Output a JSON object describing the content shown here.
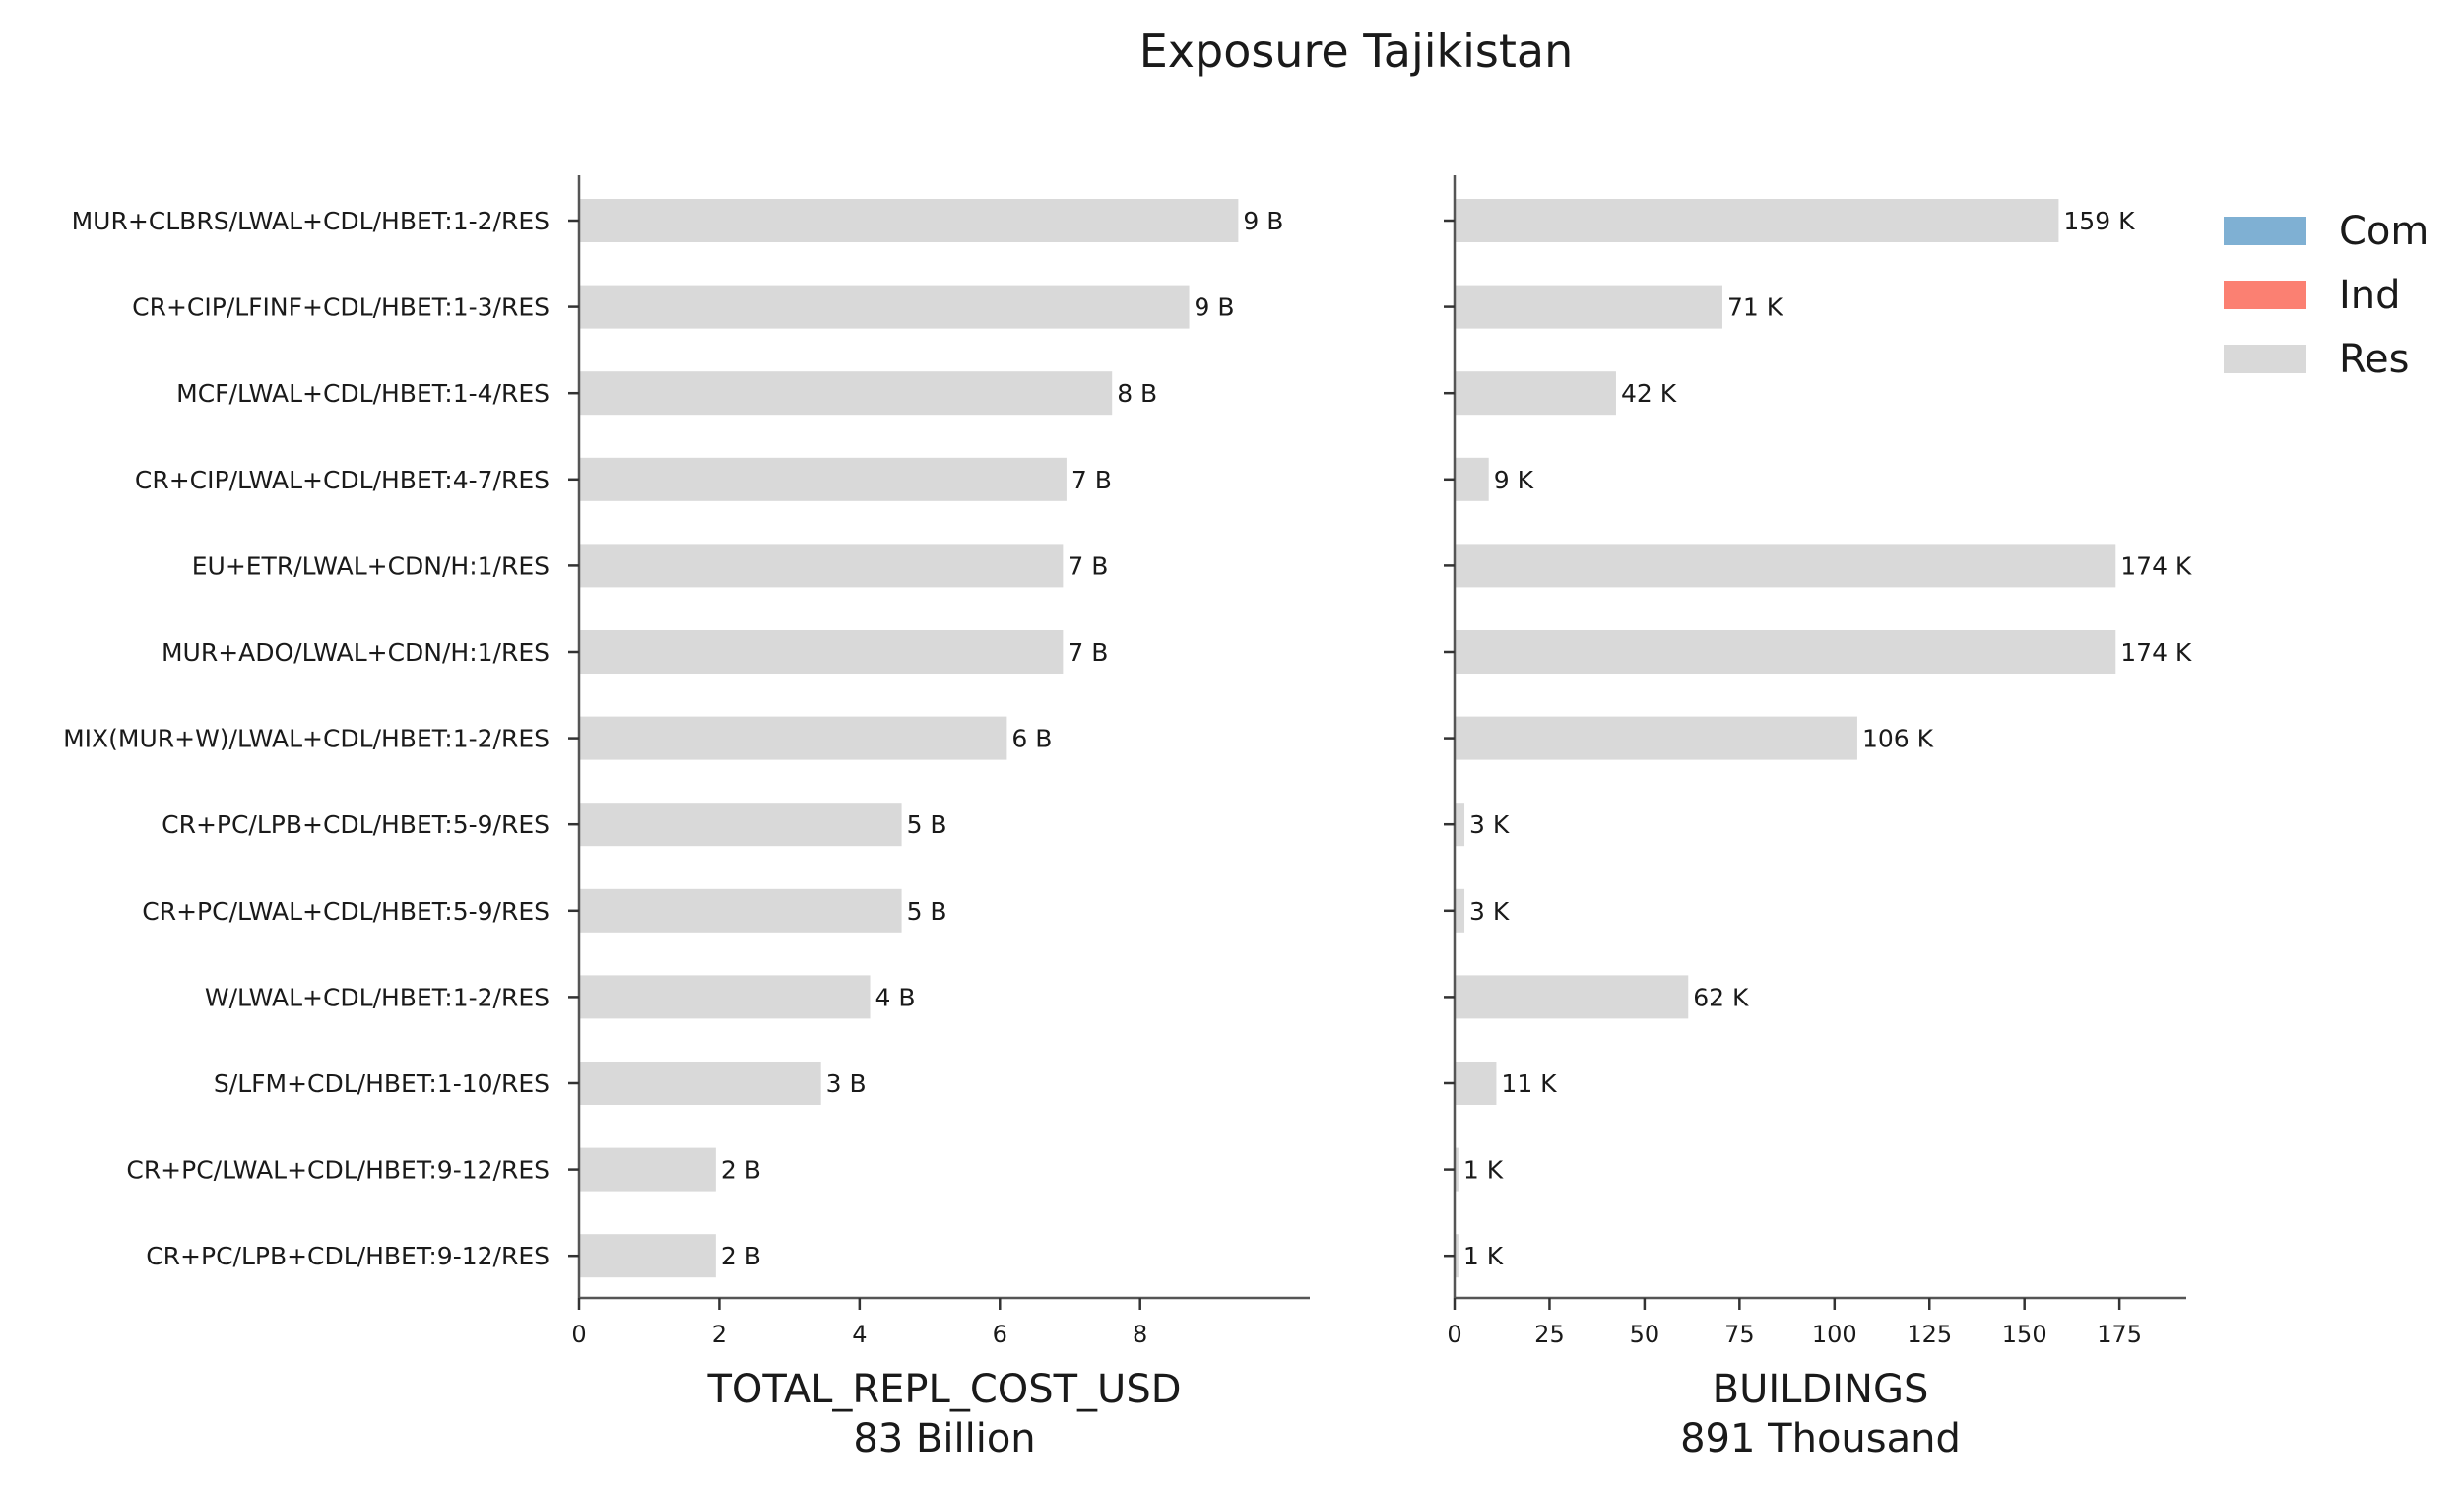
{
  "chart_data": {
    "type": "bar",
    "title": "Exposure Tajikistan",
    "categories": [
      "MUR+CLBRS/LWAL+CDL/HBET:1-2/RES",
      "CR+CIP/LFINF+CDL/HBET:1-3/RES",
      "MCF/LWAL+CDL/HBET:1-4/RES",
      "CR+CIP/LWAL+CDL/HBET:4-7/RES",
      "EU+ETR/LWAL+CDN/H:1/RES",
      "MUR+ADO/LWAL+CDN/H:1/RES",
      "MIX(MUR+W)/LWAL+CDL/HBET:1-2/RES",
      "CR+PC/LPB+CDL/HBET:5-9/RES",
      "CR+PC/LWAL+CDL/HBET:5-9/RES",
      "W/LWAL+CDL/HBET:1-2/RES",
      "S/LFM+CDL/HBET:1-10/RES",
      "CR+PC/LWAL+CDL/HBET:9-12/RES",
      "CR+PC/LPB+CDL/HBET:9-12/RES"
    ],
    "legend": {
      "placement": "top-right",
      "entries": [
        {
          "label": "Com",
          "color": "#7fb0d3"
        },
        {
          "label": "Ind",
          "color": "#fb8072"
        },
        {
          "label": "Res",
          "color": "#d9d9d9"
        }
      ]
    },
    "panels": [
      {
        "xlabel": "TOTAL_REPL_COST_USD",
        "subtitle": "83 Billion",
        "xlim": [
          0,
          9.9
        ],
        "ticks": [
          0,
          2,
          4,
          6,
          8
        ],
        "series": [
          {
            "name": "Res",
            "color": "#d9d9d9",
            "values": [
              9.4,
              8.7,
              7.6,
              6.95,
              6.9,
              6.9,
              6.1,
              4.6,
              4.6,
              4.15,
              3.45,
              1.95,
              1.95
            ],
            "labels": [
              "9 B",
              "9 B",
              "8 B",
              "7 B",
              "7 B",
              "7 B",
              "6 B",
              "5 B",
              "5 B",
              "4 B",
              "3 B",
              "2 B",
              "2 B"
            ]
          }
        ]
      },
      {
        "xlabel": "BUILDINGS",
        "subtitle": "891 Thousand",
        "xlim": [
          0,
          183
        ],
        "ticks": [
          0,
          25,
          50,
          75,
          100,
          125,
          150,
          175
        ],
        "series": [
          {
            "name": "Res",
            "color": "#d9d9d9",
            "values": [
              159,
              70.5,
              42.5,
              9,
              174,
              174,
              106,
              2.6,
              2.6,
              61.5,
              11,
              1,
              1
            ],
            "labels": [
              "159 K",
              "71 K",
              "42 K",
              "9 K",
              "174 K",
              "174 K",
              "106 K",
              "3 K",
              "3 K",
              "62 K",
              "11 K",
              "1 K",
              "1 K"
            ]
          }
        ]
      }
    ]
  }
}
